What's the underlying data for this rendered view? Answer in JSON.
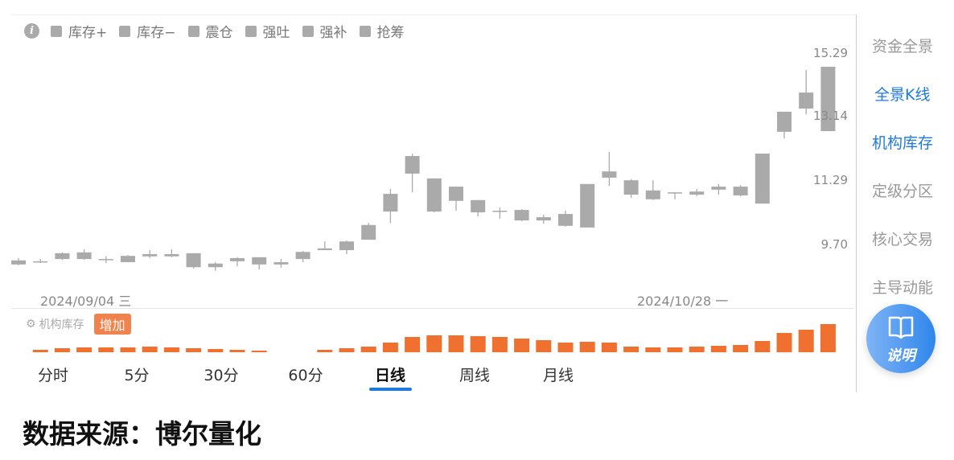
{
  "legend": {
    "items": [
      "库存+",
      "库存−",
      "震仓",
      "强吐",
      "强补",
      "抢筹"
    ],
    "swatch_color": "#aaaaaa"
  },
  "axis": {
    "labels": [
      "15.29",
      "13.14",
      "11.29",
      "9.70"
    ],
    "scale": "log"
  },
  "dates": {
    "left": "2024/09/04 三",
    "right": "2024/10/28 一"
  },
  "sub_panel": {
    "title": "机构库存",
    "badge": "增加",
    "bar_color": "#f07030"
  },
  "tabs": [
    {
      "label": "分时"
    },
    {
      "label": "5分"
    },
    {
      "label": "30分"
    },
    {
      "label": "60分"
    },
    {
      "label": "日线",
      "active": true
    },
    {
      "label": "周线"
    },
    {
      "label": "月线"
    }
  ],
  "sidebar": {
    "items": [
      {
        "label": "资金全景"
      },
      {
        "label": "全景K线",
        "active": true
      },
      {
        "label": "机构库存",
        "active": true
      },
      {
        "label": "定级分区"
      },
      {
        "label": "核心交易"
      },
      {
        "label": "主导动能"
      }
    ]
  },
  "help_button": {
    "label": "说明",
    "icon": "book-icon"
  },
  "source_text": "数据来源：博尔量化",
  "chart_data": [
    {
      "type": "candlestick",
      "y_axis_ticks": [
        15.29,
        13.14,
        11.29,
        9.7
      ],
      "ylim": [
        8.9,
        15.29
      ],
      "y_scale": "log",
      "candle_color": "#aaaaaa",
      "x_labels": {
        "1": "2024/09/04 三",
        "29": "2024/10/28 一"
      },
      "ohlc": [
        [
          9.25,
          9.39,
          9.23,
          9.34
        ],
        [
          9.3,
          9.37,
          9.28,
          9.32
        ],
        [
          9.37,
          9.52,
          9.35,
          9.5
        ],
        [
          9.37,
          9.59,
          9.35,
          9.52
        ],
        [
          9.37,
          9.43,
          9.28,
          9.37
        ],
        [
          9.3,
          9.46,
          9.3,
          9.44
        ],
        [
          9.43,
          9.57,
          9.39,
          9.48
        ],
        [
          9.43,
          9.59,
          9.41,
          9.48
        ],
        [
          9.5,
          9.5,
          9.16,
          9.19
        ],
        [
          9.27,
          9.3,
          9.11,
          9.19
        ],
        [
          9.32,
          9.41,
          9.21,
          9.39
        ],
        [
          9.41,
          9.41,
          9.14,
          9.25
        ],
        [
          9.3,
          9.37,
          9.18,
          9.25
        ],
        [
          9.37,
          9.55,
          9.3,
          9.53
        ],
        [
          9.57,
          9.77,
          9.57,
          9.61
        ],
        [
          9.57,
          9.79,
          9.48,
          9.77
        ],
        [
          9.81,
          10.21,
          9.81,
          10.16
        ],
        [
          10.49,
          11.07,
          10.21,
          10.94
        ],
        [
          11.48,
          12.04,
          10.98,
          11.97
        ],
        [
          11.35,
          11.35,
          10.47,
          10.49
        ],
        [
          11.13,
          11.13,
          10.51,
          10.76
        ],
        [
          10.78,
          10.78,
          10.37,
          10.47
        ],
        [
          10.51,
          10.59,
          10.31,
          10.51
        ],
        [
          10.53,
          10.55,
          10.25,
          10.27
        ],
        [
          10.35,
          10.41,
          10.19,
          10.27
        ],
        [
          10.14,
          10.51,
          10.12,
          10.43
        ],
        [
          10.1,
          11.2,
          10.1,
          11.2
        ],
        [
          11.37,
          12.09,
          11.15,
          11.54
        ],
        [
          11.3,
          11.33,
          10.84,
          10.92
        ],
        [
          11.03,
          11.3,
          10.78,
          10.8
        ],
        [
          10.98,
          10.98,
          10.8,
          10.98
        ],
        [
          10.92,
          11.07,
          10.88,
          11.0
        ],
        [
          11.05,
          11.2,
          10.92,
          11.13
        ],
        [
          11.13,
          11.17,
          10.88,
          10.9
        ],
        [
          10.69,
          12.04,
          10.69,
          12.04
        ],
        [
          12.68,
          13.3,
          12.48,
          13.3
        ],
        [
          13.4,
          14.69,
          13.22,
          13.92
        ],
        [
          12.7,
          14.8,
          12.7,
          14.8
        ]
      ]
    },
    {
      "type": "bar",
      "series_title": "机构库存",
      "color": "#f07030",
      "values": [
        0,
        3,
        5,
        6,
        6,
        6,
        7,
        6,
        5,
        4,
        3,
        2,
        0,
        0,
        3,
        5,
        7,
        12,
        19,
        21,
        21,
        20,
        19,
        17,
        15,
        12,
        13,
        12,
        7,
        6,
        6,
        7,
        8,
        9,
        14,
        24,
        28,
        35
      ]
    }
  ]
}
